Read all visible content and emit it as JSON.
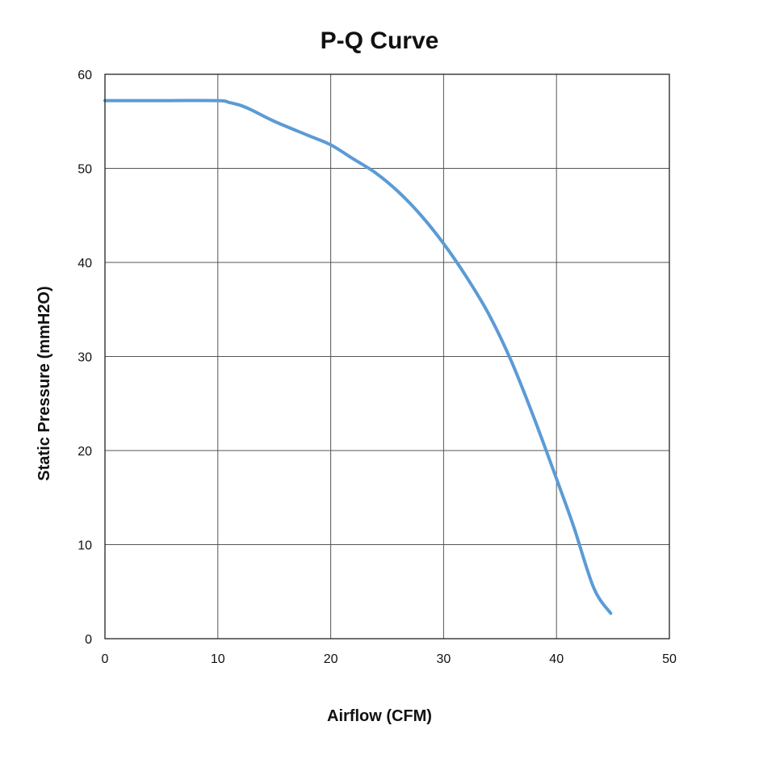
{
  "chart_data": {
    "type": "line",
    "title": "P-Q Curve",
    "xlabel": "Airflow (CFM)",
    "ylabel": "Static Pressure (mmH2O)",
    "xlim": [
      0,
      50
    ],
    "ylim": [
      0,
      60
    ],
    "x_ticks": [
      0,
      10,
      20,
      30,
      40,
      50
    ],
    "y_ticks": [
      0,
      10,
      20,
      30,
      40,
      50,
      60
    ],
    "grid": true,
    "line_color": "#5b9bd5",
    "series": [
      {
        "x": [
          0,
          5,
          10,
          11,
          12,
          13,
          15,
          18,
          20,
          22,
          24,
          26,
          28,
          30,
          32,
          34,
          36,
          38,
          40,
          41.5,
          43.3,
          44.8
        ],
        "y": [
          57.2,
          57.2,
          57.2,
          57.0,
          56.7,
          56.2,
          55.0,
          53.5,
          52.5,
          51.0,
          49.5,
          47.5,
          45.0,
          42.0,
          38.5,
          34.5,
          29.5,
          23.5,
          17.0,
          12.0,
          5.4,
          2.7
        ]
      }
    ]
  }
}
